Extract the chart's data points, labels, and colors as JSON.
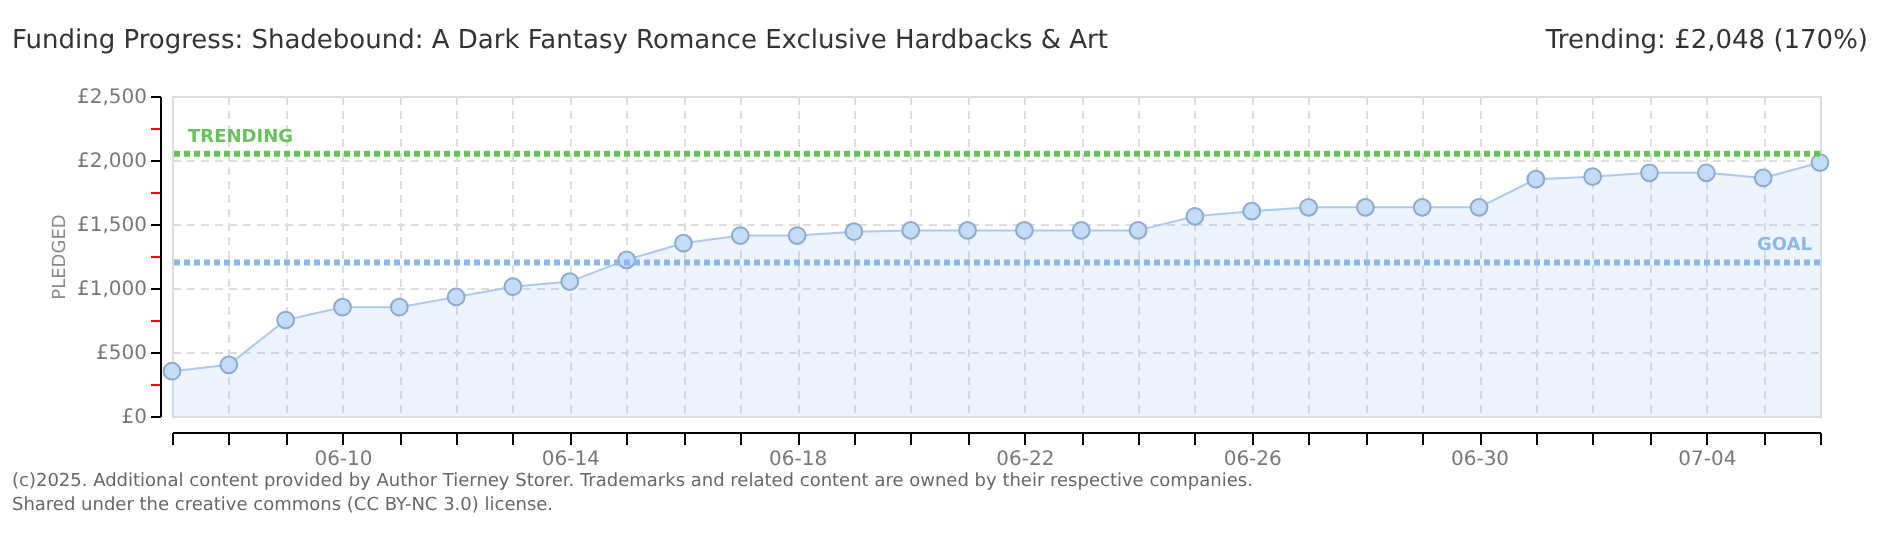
{
  "chart_data": {
    "type": "area",
    "title": "Funding Progress: Shadebound: A Dark Fantasy Romance Exclusive Hardbacks & Art",
    "subtitle": "Trending: £2,048 (170%)",
    "ylabel": "PLEDGED",
    "x": [
      "2025-06-07",
      "2025-06-08",
      "2025-06-09",
      "2025-06-10",
      "2025-06-11",
      "2025-06-12",
      "2025-06-13",
      "2025-06-14",
      "2025-06-15",
      "2025-06-16",
      "2025-06-17",
      "2025-06-18",
      "2025-06-19",
      "2025-06-20",
      "2025-06-21",
      "2025-06-22",
      "2025-06-23",
      "2025-06-24",
      "2025-06-25",
      "2025-06-26",
      "2025-06-27",
      "2025-06-28",
      "2025-06-29",
      "2025-06-30",
      "2025-07-01",
      "2025-07-02",
      "2025-07-03",
      "2025-07-04",
      "2025-07-05",
      "2025-07-06"
    ],
    "series": [
      {
        "color": "#a9c9ee",
        "values": [
          350,
          400,
          750,
          850,
          850,
          930,
          1010,
          1050,
          1220,
          1350,
          1410,
          1410,
          1440,
          1450,
          1450,
          1450,
          1450,
          1450,
          1560,
          1600,
          1630,
          1630,
          1630,
          1630,
          1850,
          1870,
          1900,
          1900,
          1860,
          1980
        ]
      }
    ],
    "marker": "circle",
    "xlim": [
      "2025-06-07",
      "2025-07-06"
    ],
    "xticks": [
      {
        "value": "2025-06-07",
        "label": null
      },
      {
        "value": "2025-06-08",
        "label": null
      },
      {
        "value": "2025-06-09",
        "label": null
      },
      {
        "value": "2025-06-10",
        "label": "06-10"
      },
      {
        "value": "2025-06-11",
        "label": null
      },
      {
        "value": "2025-06-12",
        "label": null
      },
      {
        "value": "2025-06-13",
        "label": null
      },
      {
        "value": "2025-06-14",
        "label": "06-14"
      },
      {
        "value": "2025-06-15",
        "label": null
      },
      {
        "value": "2025-06-16",
        "label": null
      },
      {
        "value": "2025-06-17",
        "label": null
      },
      {
        "value": "2025-06-18",
        "label": "06-18"
      },
      {
        "value": "2025-06-19",
        "label": null
      },
      {
        "value": "2025-06-20",
        "label": null
      },
      {
        "value": "2025-06-21",
        "label": null
      },
      {
        "value": "2025-06-22",
        "label": "06-22"
      },
      {
        "value": "2025-06-23",
        "label": null
      },
      {
        "value": "2025-06-24",
        "label": null
      },
      {
        "value": "2025-06-25",
        "label": null
      },
      {
        "value": "2025-06-26",
        "label": "06-26"
      },
      {
        "value": "2025-06-27",
        "label": null
      },
      {
        "value": "2025-06-28",
        "label": null
      },
      {
        "value": "2025-06-29",
        "label": null
      },
      {
        "value": "2025-06-30",
        "label": "06-30"
      },
      {
        "value": "2025-07-01",
        "label": null
      },
      {
        "value": "2025-07-02",
        "label": null
      },
      {
        "value": "2025-07-03",
        "label": null
      },
      {
        "value": "2025-07-04",
        "label": "07-04"
      },
      {
        "value": "2025-07-05",
        "label": null
      },
      {
        "value": "2025-07-06",
        "label": null
      }
    ],
    "ylim": [
      0,
      2500
    ],
    "yticks": [
      {
        "value": 0,
        "label": "£0"
      },
      {
        "value": 250,
        "label": null
      },
      {
        "value": 500,
        "label": "£500"
      },
      {
        "value": 750,
        "label": null
      },
      {
        "value": 1000,
        "label": "£1,000"
      },
      {
        "value": 1250,
        "label": null
      },
      {
        "value": 1500,
        "label": "£1,500"
      },
      {
        "value": 1750,
        "label": null
      },
      {
        "value": 2000,
        "label": "£2,000"
      },
      {
        "value": 2250,
        "label": null
      },
      {
        "value": 2500,
        "label": "£2,500"
      }
    ],
    "grid": true,
    "ref_lines": [
      {
        "axis": "y",
        "value": 2048,
        "label": "TRENDING",
        "color": "#66c35a",
        "line_style": "dotted"
      },
      {
        "axis": "y",
        "value": 1200,
        "label": "GOAL",
        "color": "#8bb8ea",
        "line_style": "dotted"
      }
    ],
    "annotations": [
      "(c)2025. Additional content provided by Author Tierney Storer. Trademarks and related content are owned by their respective companies.",
      "Shared under the creative commons (CC BY-NC 3.0) license."
    ]
  }
}
